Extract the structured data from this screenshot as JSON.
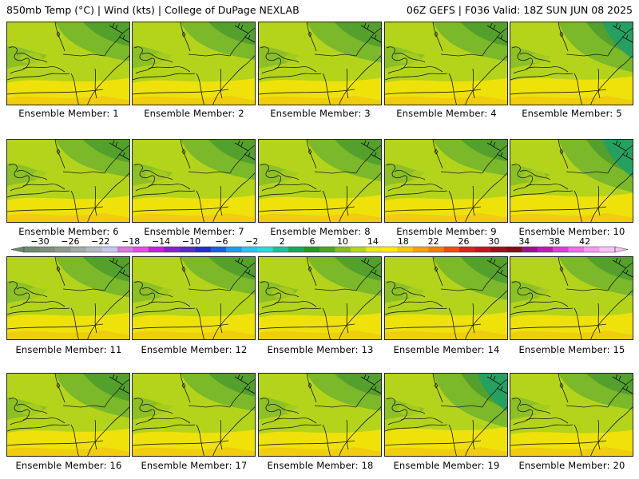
{
  "header": {
    "left_title": "850mb Temp (°C) | Wind (kts) | College of DuPage NEXLAB",
    "right_title": "06Z GEFS | F036 Valid: 18Z SUN JUN 08 2025"
  },
  "members": [
    {
      "label": "Ensemble Member: 1"
    },
    {
      "label": "Ensemble Member: 2"
    },
    {
      "label": "Ensemble Member: 3"
    },
    {
      "label": "Ensemble Member: 4"
    },
    {
      "label": "Ensemble Member: 5"
    },
    {
      "label": "Ensemble Member: 6"
    },
    {
      "label": "Ensemble Member: 7"
    },
    {
      "label": "Ensemble Member: 8"
    },
    {
      "label": "Ensemble Member: 9"
    },
    {
      "label": "Ensemble Member: 10"
    },
    {
      "label": "Ensemble Member: 11"
    },
    {
      "label": "Ensemble Member: 12"
    },
    {
      "label": "Ensemble Member: 13"
    },
    {
      "label": "Ensemble Member: 14"
    },
    {
      "label": "Ensemble Member: 15"
    },
    {
      "label": "Ensemble Member: 16"
    },
    {
      "label": "Ensemble Member: 17"
    },
    {
      "label": "Ensemble Member: 18"
    },
    {
      "label": "Ensemble Member: 19"
    },
    {
      "label": "Ensemble Member: 20"
    }
  ],
  "colorbar": {
    "tick_labels": [
      "−30",
      "−26",
      "−22",
      "−18",
      "−14",
      "−10",
      "−6",
      "−2",
      "2",
      "6",
      "10",
      "14",
      "18",
      "22",
      "26",
      "30",
      "34",
      "38",
      "42"
    ],
    "colors": [
      "#6f8a6f",
      "#7f8f7f",
      "#8f9a8f",
      "#a3a9a3",
      "#b3b8c4",
      "#c6c6ee",
      "#d67ad6",
      "#e24fe2",
      "#c81ee0",
      "#8b1ed6",
      "#5a2ad0",
      "#2a2ad2",
      "#1a5ee6",
      "#1a9cf0",
      "#22c8f0",
      "#22e0d6",
      "#16c49a",
      "#14aa5a",
      "#1e9a28",
      "#4aa81e",
      "#86c01a",
      "#b6d614",
      "#e4ec10",
      "#ffea00",
      "#ffc800",
      "#ffa000",
      "#ff7a00",
      "#f24a10",
      "#e0201e",
      "#c8141e",
      "#a00e1a",
      "#8a0a14",
      "#a0108a",
      "#c418b8",
      "#e03cd6",
      "#f06ae8",
      "#f49af0",
      "#f7c2f4"
    ]
  },
  "map": {
    "warm_color": "#eee20a",
    "mid_color": "#b4d41c",
    "cool_color": "#7bb82a",
    "cold_color": "#4f9e2c",
    "coldest_color": "#1fa06a",
    "warmest_color": "#f2c010"
  }
}
